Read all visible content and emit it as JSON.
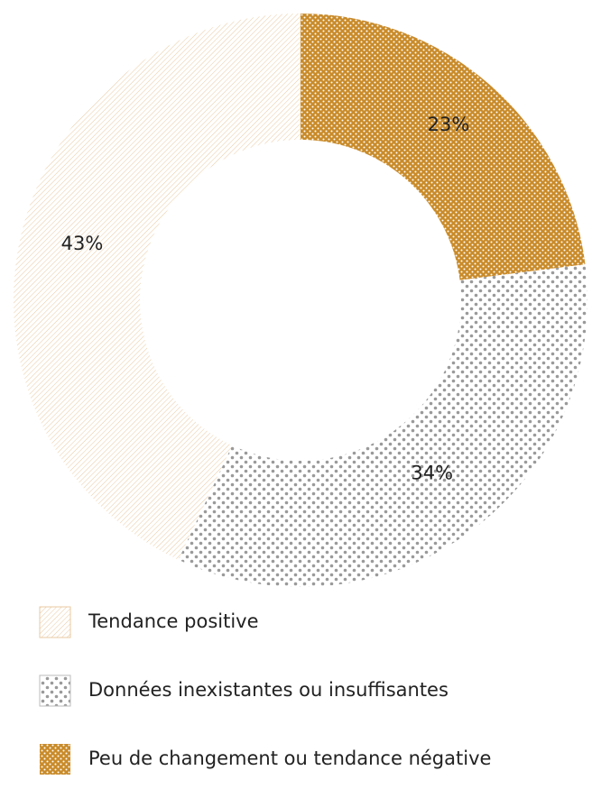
{
  "chart_data": {
    "type": "donut",
    "categories": [
      "Tendance positive",
      "Données inexistantes ou insuffisantes",
      "Peu de changement ou tendance négative"
    ],
    "values": [
      43,
      34,
      23
    ],
    "value_labels": [
      "43%",
      "34%",
      "23%"
    ],
    "colors": [
      "#e9c9a0",
      "#9a9a9a",
      "#c98b2a"
    ]
  }
}
